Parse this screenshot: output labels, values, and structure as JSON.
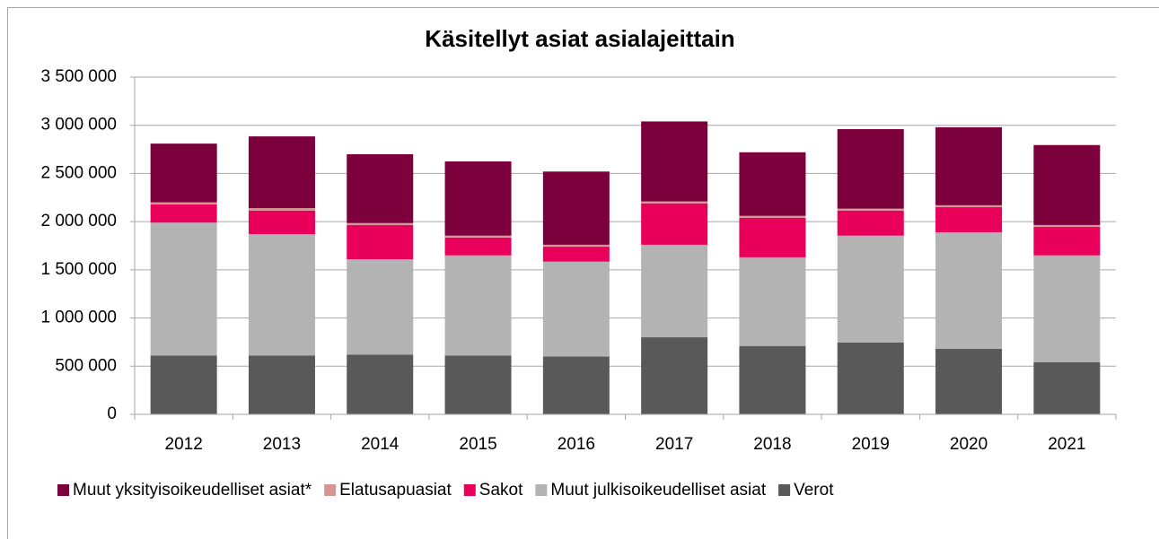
{
  "chart_data": {
    "type": "stacked_bar",
    "title": "Käsitellyt asiat asialajeittain",
    "categories": [
      "2012",
      "2013",
      "2014",
      "2015",
      "2016",
      "2017",
      "2018",
      "2019",
      "2020",
      "2021"
    ],
    "series": [
      {
        "name": "Muut yksityisoikeudelliset asiat*",
        "color": "#7b003c",
        "values": [
          610000,
          745000,
          715000,
          770000,
          760000,
          830000,
          660000,
          825000,
          810000,
          830000
        ]
      },
      {
        "name": "Elatusapuasiat",
        "color": "#d99594",
        "values": [
          20000,
          25000,
          20000,
          20000,
          20000,
          20000,
          20000,
          20000,
          20000,
          20000
        ]
      },
      {
        "name": "Sakot",
        "color": "#e8005b",
        "values": [
          190000,
          245000,
          355000,
          185000,
          155000,
          430000,
          410000,
          260000,
          260000,
          295000
        ]
      },
      {
        "name": "Muut julkisoikeudelliset asiat",
        "color": "#b3b3b3",
        "values": [
          1380000,
          1260000,
          990000,
          1040000,
          985000,
          960000,
          920000,
          1110000,
          1210000,
          1110000
        ]
      },
      {
        "name": "Verot",
        "color": "#595959",
        "values": [
          610000,
          610000,
          620000,
          610000,
          600000,
          800000,
          710000,
          745000,
          680000,
          540000
        ]
      }
    ],
    "ylim": [
      0,
      3500000
    ],
    "yticks": [
      0,
      {
        "value": 500000,
        "label": "500 000"
      },
      {
        "value": 1000000,
        "label": "1 000 000"
      },
      {
        "value": 1500000,
        "label": "1 500 000"
      },
      {
        "value": 2000000,
        "label": "2 000 000"
      },
      {
        "value": 2500000,
        "label": "2 500 000"
      },
      {
        "value": 3000000,
        "label": "3 000 000"
      },
      {
        "value": 3500000,
        "label": "3 500 000"
      }
    ],
    "grid": true,
    "legend": "bottom"
  }
}
